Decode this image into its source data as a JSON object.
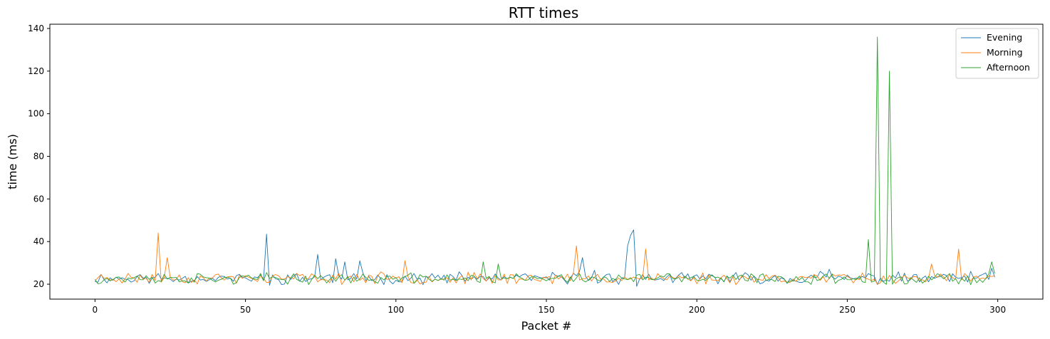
{
  "chart_data": {
    "type": "line",
    "title": "RTT times",
    "xlabel": "Packet #",
    "ylabel": "time (ms)",
    "xlim": [
      -15,
      315
    ],
    "ylim": [
      13,
      142
    ],
    "xticks": [
      0,
      50,
      100,
      150,
      200,
      250,
      300
    ],
    "yticks": [
      20,
      40,
      60,
      80,
      100,
      120,
      140
    ],
    "grid": false,
    "legend_position": "top-right",
    "series": [
      {
        "name": "Evening",
        "color": "#1f77b4",
        "baseline": 22.8,
        "jitter": 2.0,
        "seed": 11,
        "spikes": [
          [
            57,
            43.5
          ],
          [
            58,
            19.5
          ],
          [
            74,
            34
          ],
          [
            80,
            32
          ],
          [
            83,
            30.5
          ],
          [
            88,
            31
          ],
          [
            160,
            24
          ],
          [
            161,
            26
          ],
          [
            162,
            32.5
          ],
          [
            166,
            26.5
          ],
          [
            177,
            38
          ],
          [
            178,
            43
          ],
          [
            179,
            45.5
          ],
          [
            180,
            19
          ],
          [
            241,
            26
          ],
          [
            244,
            27
          ],
          [
            291,
            26
          ],
          [
            298,
            27.5
          ]
        ]
      },
      {
        "name": "Morning",
        "color": "#ff7f0e",
        "baseline": 22.8,
        "jitter": 2.0,
        "seed": 23,
        "spikes": [
          [
            21,
            44
          ],
          [
            22,
            21
          ],
          [
            24,
            32.5
          ],
          [
            103,
            31
          ],
          [
            160,
            38
          ],
          [
            161,
            22
          ],
          [
            183,
            36.5
          ],
          [
            184,
            22
          ],
          [
            278,
            29.5
          ],
          [
            287,
            36.5
          ],
          [
            288,
            22
          ]
        ]
      },
      {
        "name": "Afternoon",
        "color": "#2ca02c",
        "baseline": 22.6,
        "jitter": 1.9,
        "seed": 37,
        "spikes": [
          [
            129,
            30.5
          ],
          [
            134,
            29.5
          ],
          [
            257,
            41
          ],
          [
            258,
            21
          ],
          [
            260,
            136
          ],
          [
            261,
            22
          ],
          [
            262,
            21
          ],
          [
            264,
            120
          ],
          [
            265,
            20
          ],
          [
            298,
            30.5
          ],
          [
            299,
            25
          ]
        ]
      }
    ],
    "x_start": 0,
    "x_end": 299
  }
}
